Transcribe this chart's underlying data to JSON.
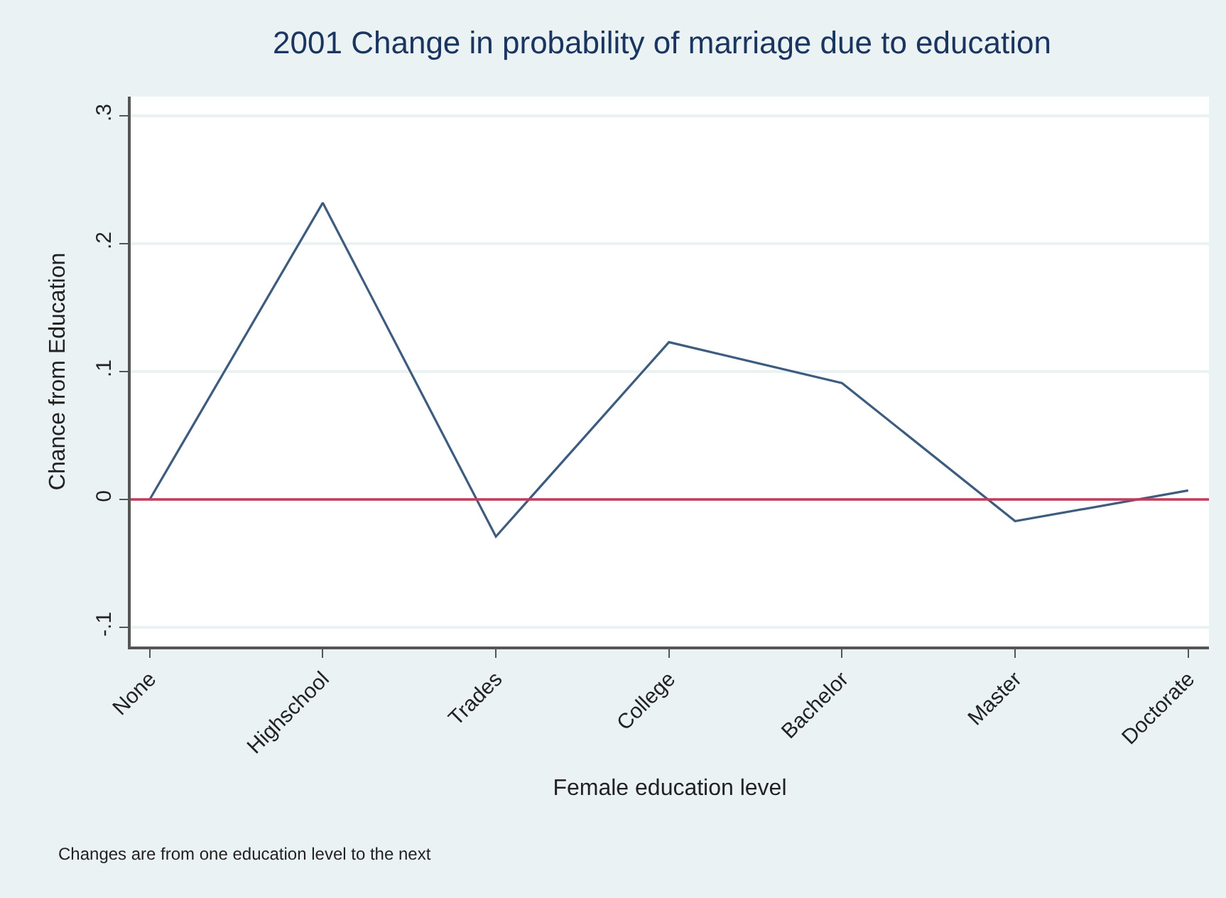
{
  "chart_data": {
    "type": "line",
    "title": "2001 Change in probability of marriage due to education",
    "xlabel": "Female education level",
    "ylabel": "Chance from Education",
    "categories": [
      "None",
      "Highschool",
      "Trades",
      "College",
      "Bachelor",
      "Master",
      "Doctorate"
    ],
    "series": [
      {
        "color": "#3e5c7e",
        "values": [
          0,
          0.232,
          -0.029,
          0.123,
          0.091,
          -0.017,
          0.007
        ]
      }
    ],
    "ylim": [
      -0.115,
      0.315
    ],
    "yticks": [
      {
        "value": -0.1,
        "label": "-.1"
      },
      0,
      {
        "value": 0.1,
        "label": ".1"
      },
      {
        "value": 0.2,
        "label": ".2"
      },
      {
        "value": 0.3,
        "label": ".3"
      }
    ],
    "ref_lines": [
      {
        "axis": "y",
        "value": 0,
        "color": "#c8385a"
      }
    ],
    "annotations": [
      "Changes are from one education level to the next"
    ],
    "grid": "y",
    "marker": "none",
    "line_style": "solid"
  }
}
